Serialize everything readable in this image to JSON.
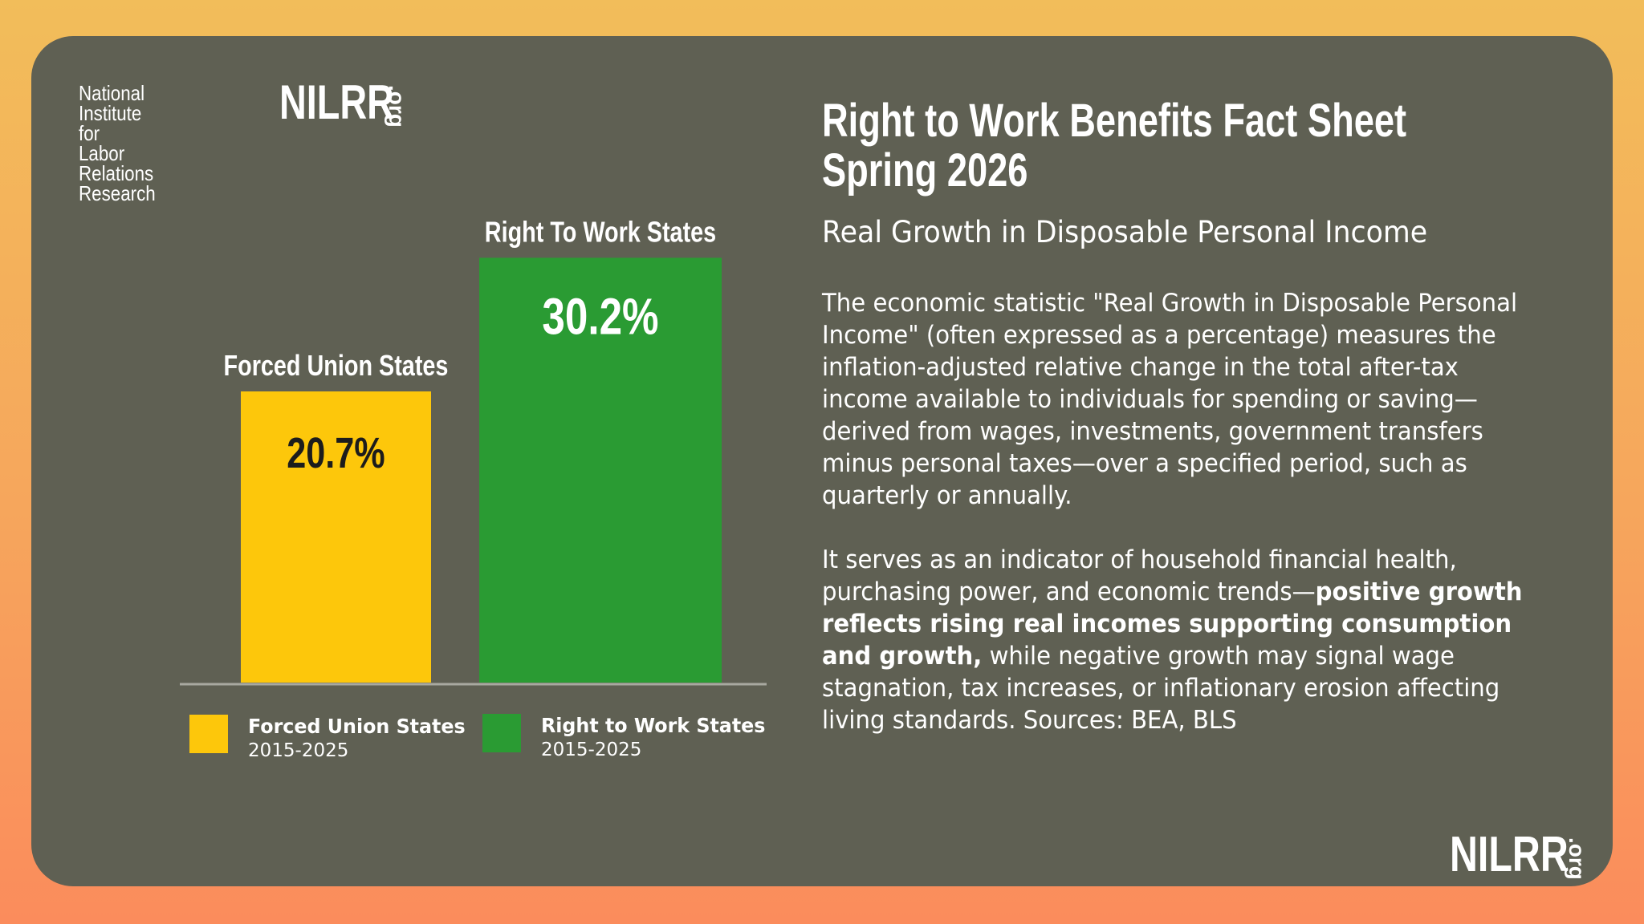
{
  "logo": {
    "org_line1": "National Institute for",
    "org_line2": "Labor Relations Research",
    "wordmark": "NILRR",
    "suffix": ".org"
  },
  "title_line1": "Right to Work Benefits Fact Sheet",
  "title_line2": "Spring 2026",
  "subtitle": "Real Growth in Disposable Personal Income",
  "paragraph1": "The economic statistic \"Real Growth in Disposable Personal Income\" (often expressed as a percentage) measures the inflation-adjusted relative change in the total after-tax income available to individuals for spending or saving—derived from wages, investments, government transfers minus personal taxes—over a specified period, such as quarterly or annually.",
  "paragraph2_start": "It serves as an indicator of household financial health, purchasing power, and economic trends—",
  "paragraph2_bold": "positive growth reflects rising real incomes supporting consumption and growth,",
  "paragraph2_end": " while negative growth may signal wage stagnation, tax increases, or inflationary erosion affecting living standards. Sources: BEA, BLS",
  "chart_data": {
    "type": "bar",
    "categories": [
      "Forced Union States",
      "Right To Work States"
    ],
    "values": [
      20.7,
      30.2
    ],
    "value_labels": [
      "20.7%",
      "30.2%"
    ],
    "colors": [
      "#fdc70b",
      "#2a9b33"
    ],
    "value_label_colors": [
      "#1c1c1c",
      "#ffffff"
    ],
    "ylim": [
      0,
      34.5
    ],
    "grid": false,
    "legend": {
      "position": "bottom",
      "items": [
        {
          "name": "Forced Union States",
          "period": "2015-2025",
          "color": "#fdc70b"
        },
        {
          "name": "Right to Work States",
          "period": "2015-2025",
          "color": "#2a9b33"
        }
      ]
    }
  },
  "colors": {
    "card": "#5f6053",
    "axis": "#a8a9a0"
  }
}
